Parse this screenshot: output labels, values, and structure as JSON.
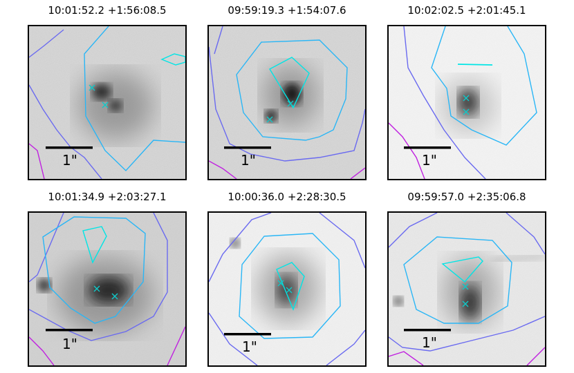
{
  "panels": [
    {
      "title": "10:01:52.2 +1:56:08.5",
      "scale_label": "1\""
    },
    {
      "title": "09:59:19.3 +1:54:07.6",
      "scale_label": "1\""
    },
    {
      "title": "10:02:02.5 +2:01:45.1",
      "scale_label": "1\""
    },
    {
      "title": "10:01:34.9 +2:03:27.1",
      "scale_label": "1\""
    },
    {
      "title": "10:00:36.0 +2:28:30.5",
      "scale_label": "1\""
    },
    {
      "title": "09:59:57.0 +2:35:06.8",
      "scale_label": "1\""
    }
  ],
  "colors": {
    "contour_inner": "#00e5e5",
    "contour_mid": "#29b6f6",
    "contour_outer": "#6a6af0",
    "contour_far": "#c020e0",
    "marker": "#10c8c8",
    "scale_bar": "#000000"
  }
}
